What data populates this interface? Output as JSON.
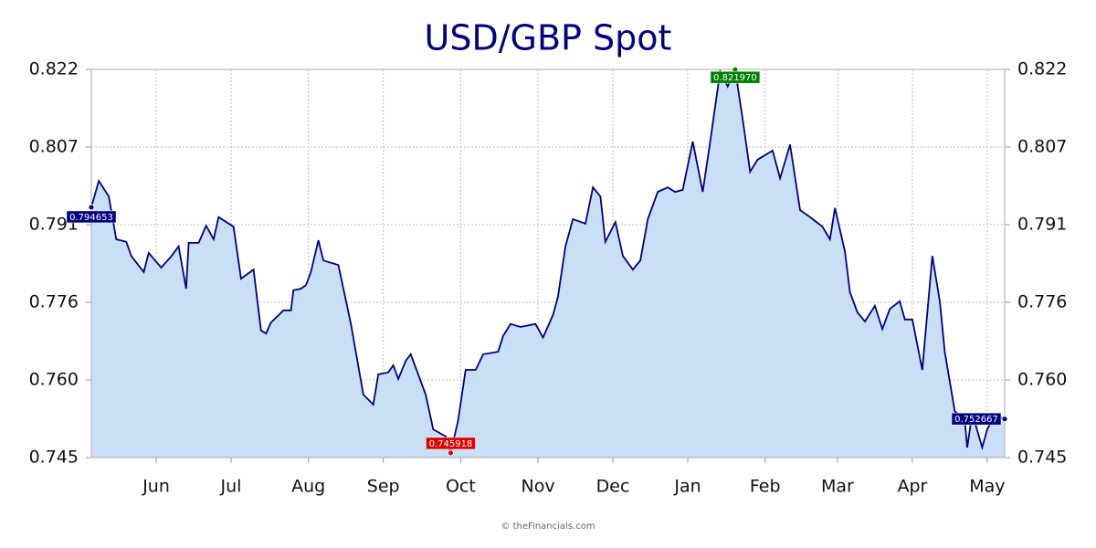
{
  "chart_data": {
    "type": "area",
    "title": "USD/GBP Spot",
    "source": "© theFinancials.com",
    "line_color": "#000080",
    "fill_color": "#c8dff5",
    "grid": true,
    "label_colors": {
      "high": "#008000",
      "low": "#e00000",
      "default": "#000080"
    },
    "xlim": [
      0,
      366
    ],
    "xticks": [
      {
        "value": 26,
        "label": "Jun"
      },
      {
        "value": 56,
        "label": "Jul"
      },
      {
        "value": 87,
        "label": "Aug"
      },
      {
        "value": 117,
        "label": "Sep"
      },
      {
        "value": 148,
        "label": "Oct"
      },
      {
        "value": 179,
        "label": "Nov"
      },
      {
        "value": 209,
        "label": "Dec"
      },
      {
        "value": 239,
        "label": "Jan"
      },
      {
        "value": 270,
        "label": "Feb"
      },
      {
        "value": 299,
        "label": "Mar"
      },
      {
        "value": 329,
        "label": "Apr"
      },
      {
        "value": 359,
        "label": "May"
      }
    ],
    "ylim": [
      0.745,
      0.822
    ],
    "yticks": [
      0.745,
      {
        "value": 0.7604,
        "label": "0.760"
      },
      {
        "value": 0.7758,
        "label": "0.776"
      },
      {
        "value": 0.7912,
        "label": "0.791"
      },
      {
        "value": 0.8066,
        "label": "0.807"
      },
      0.822
    ],
    "x": [
      0,
      3,
      7,
      10,
      14,
      16,
      21,
      23,
      28,
      32,
      35,
      38,
      39,
      43,
      46,
      49,
      51,
      57,
      60,
      65,
      68,
      70,
      72,
      77,
      80,
      81,
      84,
      86,
      88,
      91,
      93,
      99,
      104,
      109,
      113,
      115,
      119,
      121,
      123,
      126,
      128,
      131,
      134,
      137,
      142,
      144,
      147,
      150,
      154,
      157,
      163,
      165,
      168,
      172,
      178,
      181,
      185,
      187,
      190,
      193,
      198,
      201,
      204,
      206,
      210,
      213,
      217,
      220,
      223,
      227,
      231,
      234,
      237,
      241,
      245,
      248,
      252,
      255,
      258,
      261,
      264,
      267,
      273,
      276,
      280,
      284,
      288,
      293,
      296,
      298,
      302,
      304,
      307,
      310,
      314,
      317,
      320,
      324,
      326,
      329,
      333,
      337,
      340,
      342,
      346,
      350,
      351,
      353,
      357,
      359,
      362,
      366
    ],
    "values": [
      0.794653,
      0.7999,
      0.7968,
      0.7883,
      0.7878,
      0.785,
      0.7818,
      0.7856,
      0.7827,
      0.7849,
      0.7869,
      0.7785,
      0.7876,
      0.7876,
      0.791,
      0.7883,
      0.7927,
      0.7908,
      0.7805,
      0.7823,
      0.7702,
      0.7696,
      0.7718,
      0.7742,
      0.7742,
      0.7782,
      0.7785,
      0.7792,
      0.7818,
      0.7881,
      0.7841,
      0.7832,
      0.7715,
      0.7575,
      0.7555,
      0.7615,
      0.7619,
      0.7633,
      0.7606,
      0.7642,
      0.7655,
      0.7615,
      0.7575,
      0.7506,
      0.7492,
      0.745918,
      0.7524,
      0.7624,
      0.7624,
      0.7655,
      0.766,
      0.7691,
      0.7715,
      0.7709,
      0.7715,
      0.7688,
      0.7733,
      0.7769,
      0.7869,
      0.7923,
      0.7914,
      0.7986,
      0.7968,
      0.7878,
      0.7917,
      0.785,
      0.7823,
      0.7841,
      0.7923,
      0.7977,
      0.7986,
      0.7977,
      0.7981,
      0.8077,
      0.7977,
      0.8077,
      0.8216,
      0.8186,
      0.82197,
      0.8122,
      0.8017,
      0.8041,
      0.8059,
      0.8004,
      0.8071,
      0.7941,
      0.7927,
      0.7908,
      0.7883,
      0.7945,
      0.7859,
      0.7778,
      0.7738,
      0.772,
      0.7751,
      0.7705,
      0.7745,
      0.776,
      0.7724,
      0.7724,
      0.7624,
      0.785,
      0.776,
      0.766,
      0.7542,
      0.7524,
      0.747,
      0.7538,
      0.747,
      0.7506,
      0.7533,
      0.752667
    ],
    "value_labels": [
      "0.794653",
      null,
      null,
      null,
      null,
      null,
      null,
      null,
      null,
      null,
      null,
      null,
      null,
      null,
      null,
      null,
      null,
      null,
      null,
      null,
      null,
      null,
      null,
      null,
      null,
      null,
      null,
      null,
      null,
      null,
      null,
      null,
      null,
      null,
      null,
      null,
      null,
      null,
      null,
      null,
      null,
      null,
      null,
      null,
      null,
      "0.745918",
      null,
      null,
      null,
      null,
      null,
      null,
      null,
      null,
      null,
      null,
      null,
      null,
      null,
      null,
      null,
      null,
      null,
      null,
      null,
      null,
      null,
      null,
      null,
      null,
      null,
      null,
      null,
      null,
      null,
      null,
      null,
      null,
      "0.821970",
      null,
      null,
      null,
      null,
      null,
      null,
      null,
      null,
      null,
      null,
      null,
      null,
      null,
      null,
      null,
      null,
      null,
      null,
      null,
      null,
      null,
      null,
      null,
      null,
      null,
      null,
      null,
      null,
      null,
      null,
      null,
      null,
      "0.752667"
    ]
  }
}
